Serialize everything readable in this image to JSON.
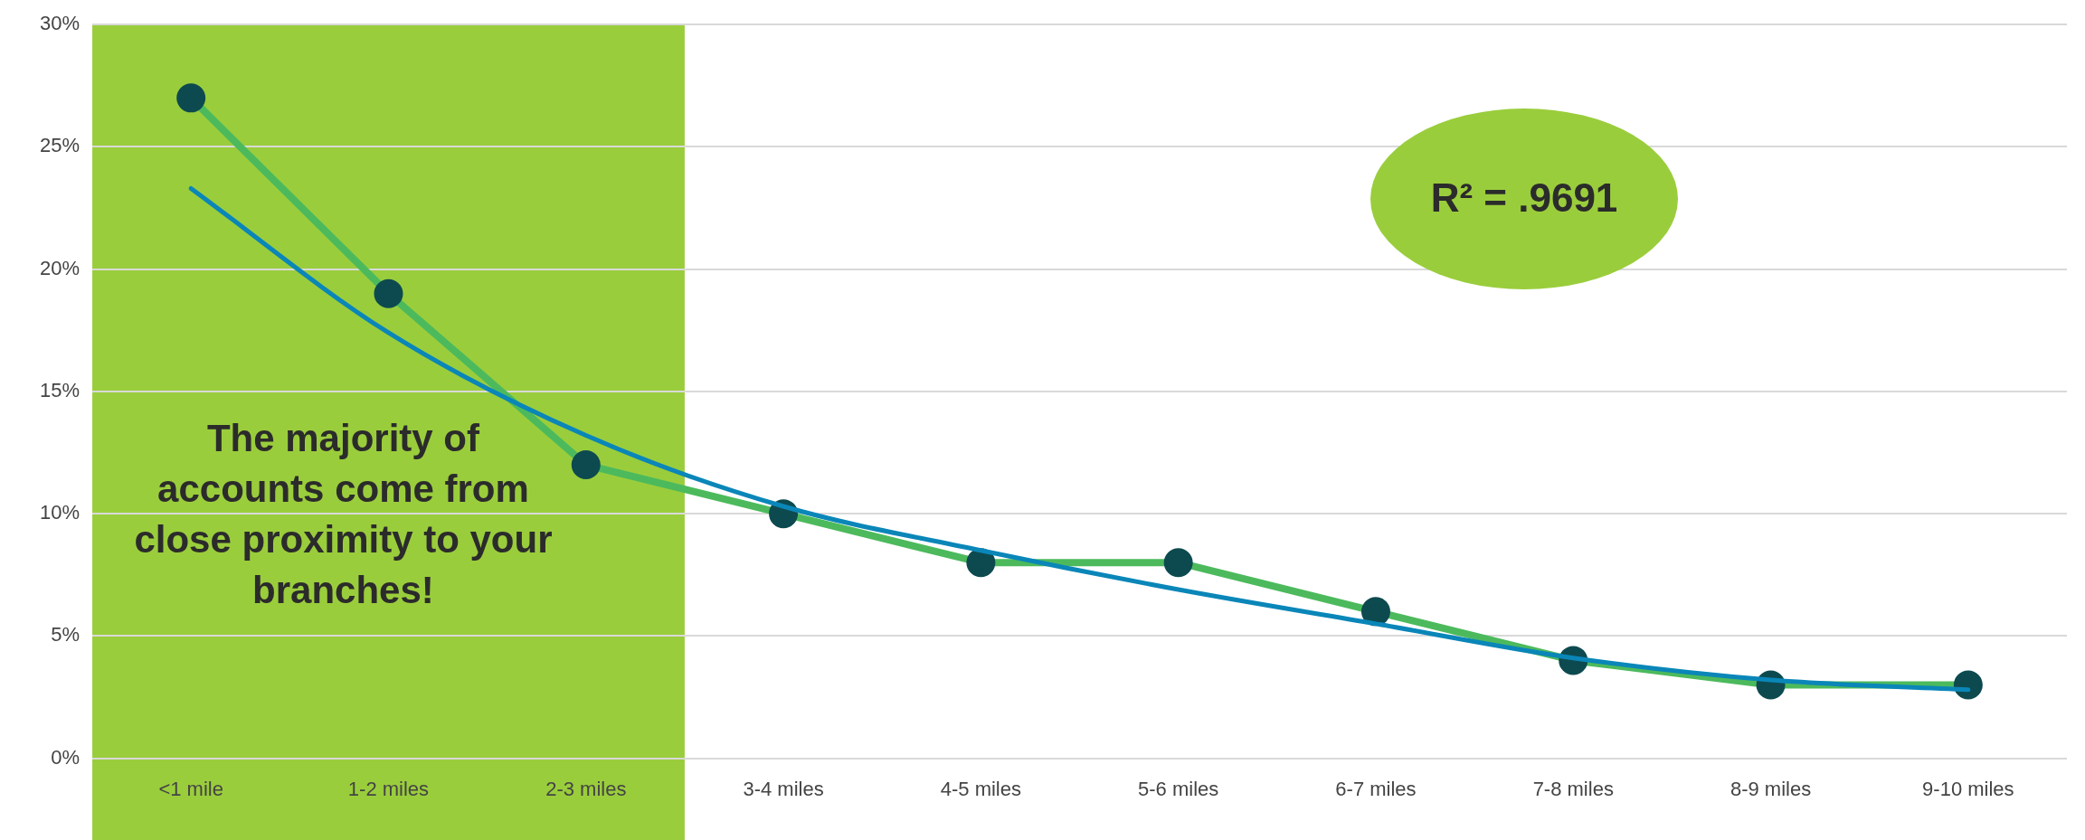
{
  "chart_data": {
    "type": "line",
    "categories": [
      "<1 mile",
      "1-2 miles",
      "2-3 miles",
      "3-4 miles",
      "4-5 miles",
      "5-6 miles",
      "6-7 miles",
      "7-8 miles",
      "8-9 miles",
      "9-10 miles"
    ],
    "series": [
      {
        "color": "#4cba5c",
        "values": [
          27,
          19,
          12,
          10,
          8,
          8,
          6,
          4,
          3,
          3
        ],
        "marker": "circle"
      },
      {
        "color": "#0a86b8",
        "values": [
          23.3,
          17.4,
          13.2,
          10.3,
          8.5,
          6.9,
          5.5,
          4.1,
          3.2,
          2.8
        ],
        "marker": "none"
      }
    ],
    "ylim": [
      0,
      30
    ],
    "yticks": [
      {
        "value": 0,
        "label": "0%"
      },
      {
        "value": 5,
        "label": "5%"
      },
      {
        "value": 10,
        "label": "10%"
      },
      {
        "value": 15,
        "label": "15%"
      },
      {
        "value": 20,
        "label": "20%"
      },
      {
        "value": 25,
        "label": "25%"
      },
      {
        "value": 30,
        "label": "30%"
      }
    ],
    "grid": "y",
    "legend": false,
    "bands": [
      {
        "axis": "x",
        "from": "<1 mile",
        "to": "2-3 miles",
        "color": "#9acd3c"
      }
    ],
    "annotations": [
      "The majority of accounts come from close proximity to your branches!",
      "R² = .9691"
    ]
  }
}
